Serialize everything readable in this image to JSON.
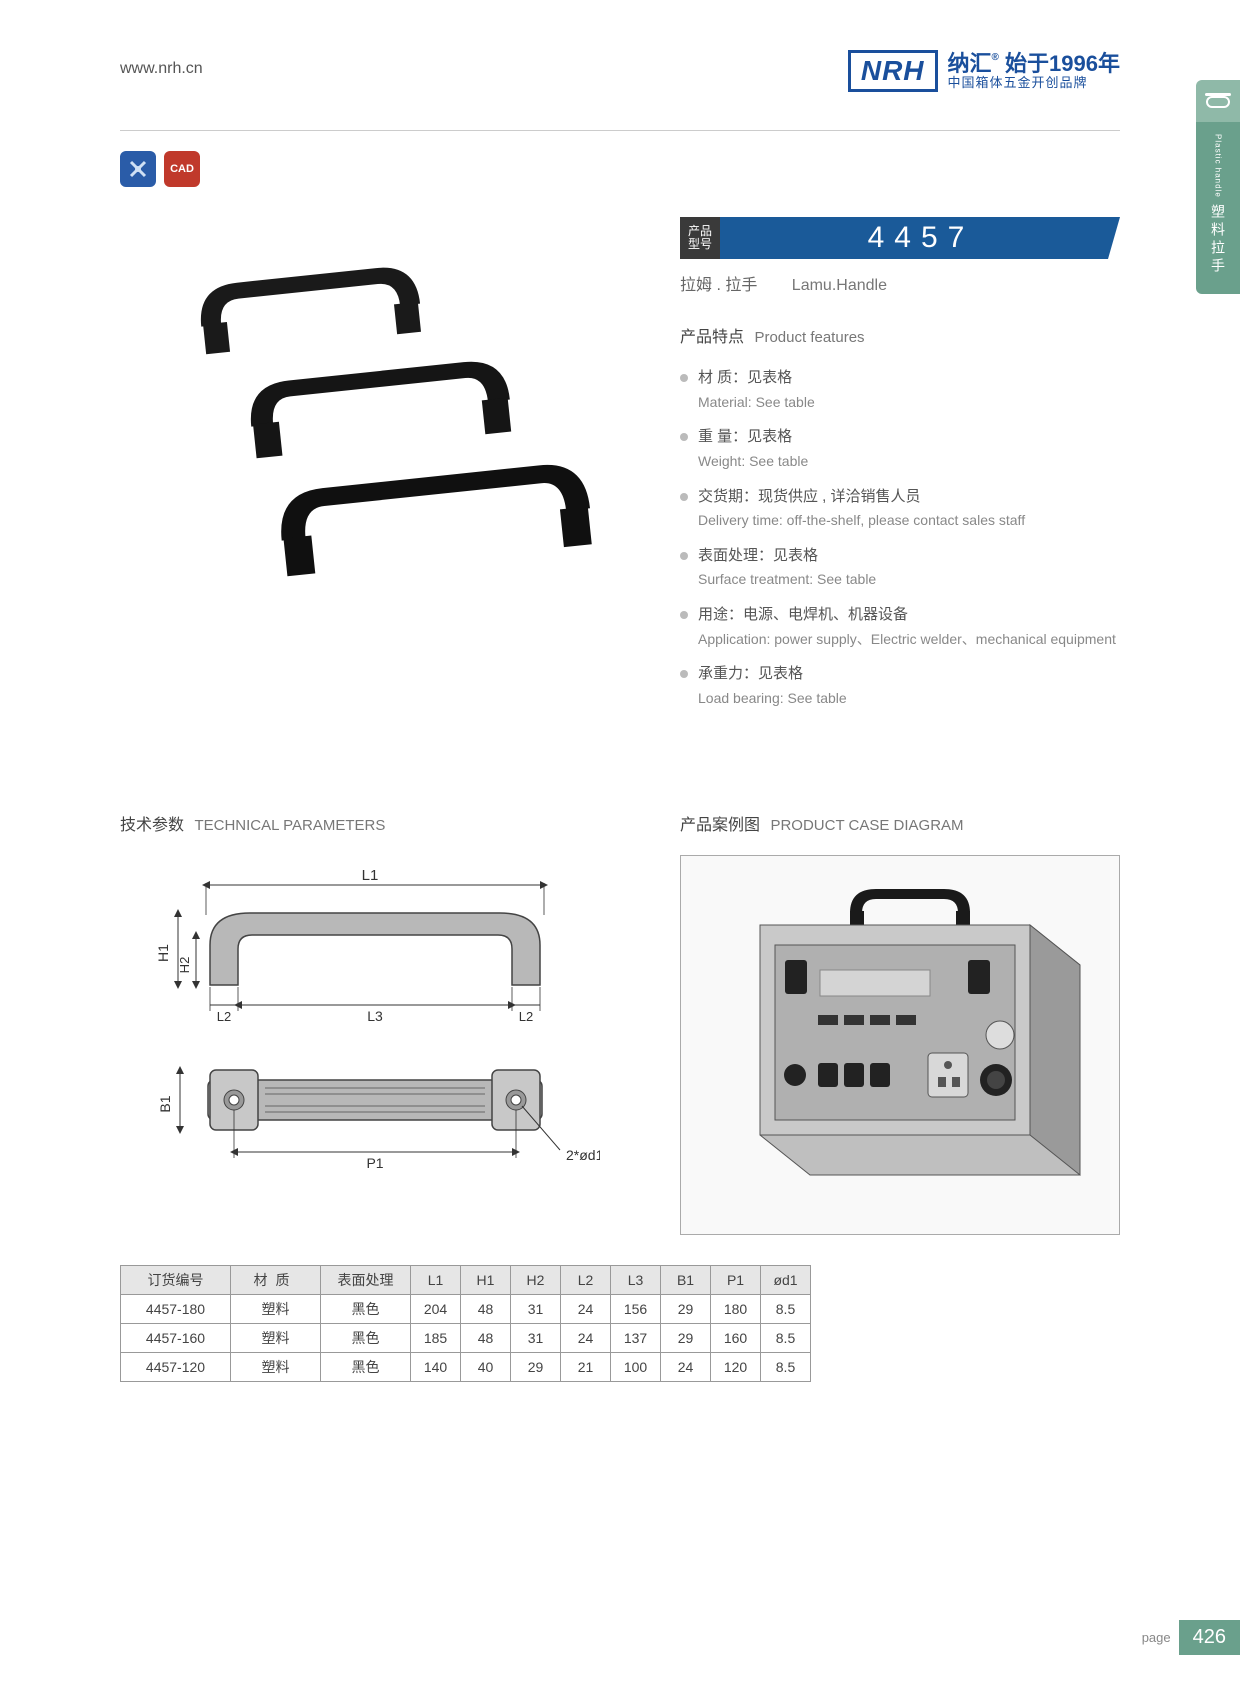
{
  "header": {
    "url": "www.nrh.cn",
    "logo_text": "NRH",
    "brand_cn": "纳汇",
    "since": "始于1996年",
    "tagline": "中国箱体五金开创品牌"
  },
  "side_tab": {
    "en": "Plastic handle",
    "cn": "塑料拉手"
  },
  "badges": {
    "b1": "✦",
    "b2": "CAD"
  },
  "product": {
    "label_l1": "产品",
    "label_l2": "型号",
    "number": "4457",
    "subtitle_cn": "拉姆 . 拉手",
    "subtitle_en": "Lamu.Handle"
  },
  "features_title_cn": "产品特点",
  "features_title_en": "Product features",
  "features": [
    {
      "cn": "材  质：见表格",
      "en": "Material: See table"
    },
    {
      "cn": "重  量：见表格",
      "en": "Weight: See table"
    },
    {
      "cn": "交货期：现货供应 , 详洽销售人员",
      "en": "Delivery time: off-the-shelf, please contact sales staff"
    },
    {
      "cn": "表面处理：见表格",
      "en": "Surface treatment:  See table"
    },
    {
      "cn": "用途：电源、电焊机、机器设备",
      "en": "Application: power supply、Electric welder、mechanical equipment"
    },
    {
      "cn": "承重力：见表格",
      "en": "Load bearing: See table"
    }
  ],
  "tech_title_cn": "技术参数",
  "tech_title_en": "TECHNICAL PARAMETERS",
  "case_title_cn": "产品案例图",
  "case_title_en": "PRODUCT CASE DIAGRAM",
  "diagram": {
    "L1": "L1",
    "H1": "H1",
    "H2": "H2",
    "L2a": "L2",
    "L3": "L3",
    "L2b": "L2",
    "B1": "B1",
    "P1": "P1",
    "holes": "2*ød1"
  },
  "table": {
    "headers": [
      "订货编号",
      "材质",
      "表面处理",
      "L1",
      "H1",
      "H2",
      "L2",
      "L3",
      "B1",
      "P1",
      "ød1"
    ],
    "rows": [
      [
        "4457-180",
        "塑料",
        "黑色",
        "204",
        "48",
        "31",
        "24",
        "156",
        "29",
        "180",
        "8.5"
      ],
      [
        "4457-160",
        "塑料",
        "黑色",
        "185",
        "48",
        "31",
        "24",
        "137",
        "29",
        "160",
        "8.5"
      ],
      [
        "4457-120",
        "塑料",
        "黑色",
        "140",
        "40",
        "29",
        "21",
        "100",
        "24",
        "120",
        "8.5"
      ]
    ]
  },
  "footer": {
    "page_label": "page",
    "page_num": "426"
  },
  "colors": {
    "brand_blue": "#1a4f9c",
    "banner_blue": "#1a5a99",
    "tab_green": "#6aa08c",
    "tab_lightgreen": "#8fb9a8",
    "badge_red": "#c0392b"
  }
}
